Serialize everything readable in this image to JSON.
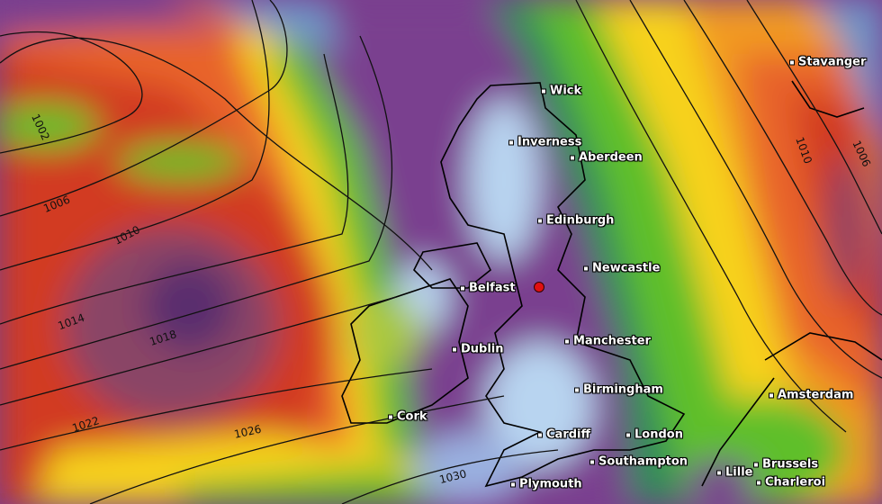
{
  "map": {
    "cities": [
      {
        "name": "Wick"
      },
      {
        "name": "Inverness"
      },
      {
        "name": "Aberdeen"
      },
      {
        "name": "Edinburgh"
      },
      {
        "name": "Newcastle"
      },
      {
        "name": "Belfast"
      },
      {
        "name": "Dublin"
      },
      {
        "name": "Manchester"
      },
      {
        "name": "Birmingham"
      },
      {
        "name": "Cork"
      },
      {
        "name": "Cardiff"
      },
      {
        "name": "London"
      },
      {
        "name": "Southampton"
      },
      {
        "name": "Plymouth"
      },
      {
        "name": "Stavanger"
      },
      {
        "name": "Amsterdam"
      },
      {
        "name": "Brussels"
      },
      {
        "name": "Lille"
      },
      {
        "name": "Charleroi"
      }
    ],
    "isobar_labels": [
      "1002",
      "1006",
      "1010",
      "1014",
      "1018",
      "1022",
      "1026",
      "1030",
      "1010",
      "1006"
    ],
    "marker": {
      "color": "#e01010",
      "icon": "location-dot-icon"
    },
    "colors": {
      "low": "#7a3f8f",
      "calm": "#b8d4f0",
      "moderate": "#5fbf2a",
      "high": "#f7d21a",
      "strong": "#e8642a",
      "extreme": "#c8281e"
    }
  }
}
